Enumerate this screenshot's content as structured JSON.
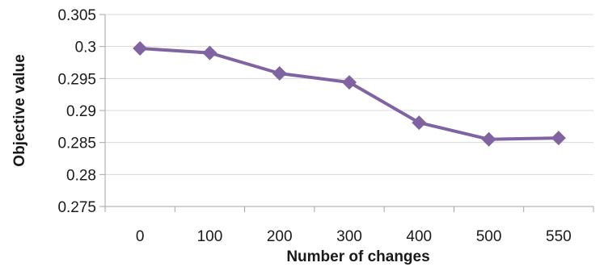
{
  "chart_data": {
    "type": "line",
    "title": "",
    "xlabel": "Number of changes",
    "ylabel": "Objective value",
    "categories": [
      "0",
      "100",
      "200",
      "300",
      "400",
      "500",
      "550"
    ],
    "series": [
      {
        "values": [
          0.2997,
          0.299,
          0.2958,
          0.2944,
          0.2881,
          0.2855,
          0.2857
        ]
      }
    ],
    "ylim": [
      0.275,
      0.305
    ],
    "yticks": [
      "0.305",
      "0.3",
      "0.295",
      "0.29",
      "0.285",
      "0.28",
      "0.275"
    ],
    "grid": true,
    "legend": "none",
    "colors": {
      "series": "#8064A2",
      "grid": "#D9D9D9",
      "axis": "#A6A6A6"
    },
    "marker": "diamond"
  }
}
